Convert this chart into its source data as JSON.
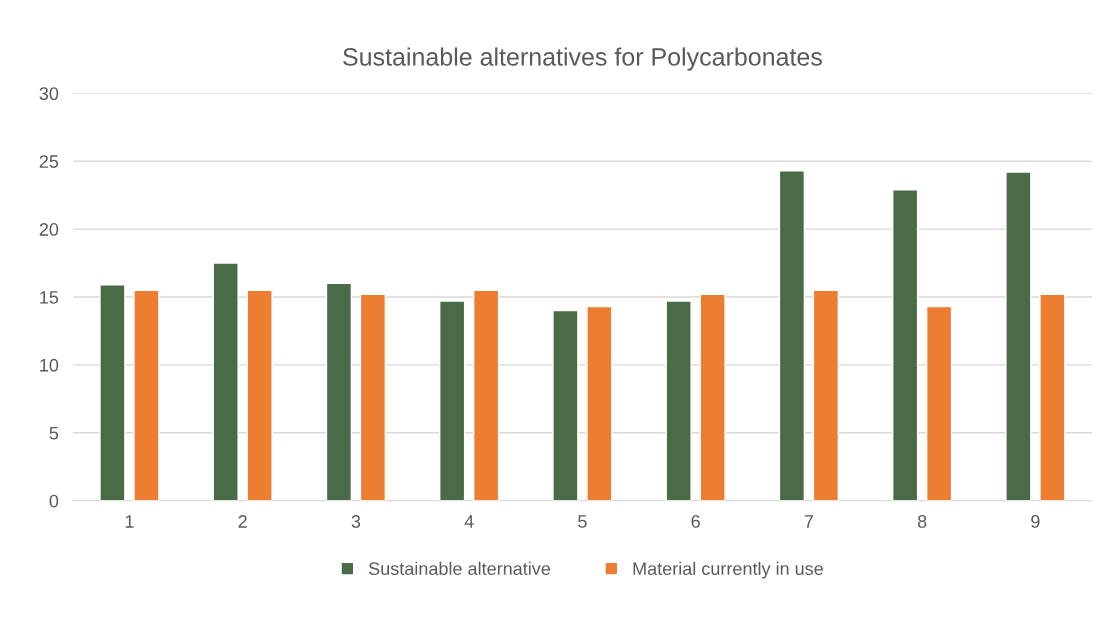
{
  "chart_data": {
    "type": "bar",
    "title": "Sustainable alternatives for Polycarbonates",
    "categories": [
      "1",
      "2",
      "3",
      "4",
      "5",
      "6",
      "7",
      "8",
      "9"
    ],
    "series": [
      {
        "name": "Sustainable alternative",
        "color": "#4a6b47",
        "values": [
          15.9,
          17.5,
          16.0,
          14.7,
          14.0,
          14.7,
          24.3,
          22.9,
          24.2
        ]
      },
      {
        "name": "Material currently in use",
        "color": "#ed7d31",
        "values": [
          15.5,
          15.5,
          15.2,
          15.5,
          14.3,
          15.2,
          15.5,
          14.3,
          15.2
        ]
      }
    ],
    "ylim": [
      0,
      30
    ],
    "yticks": [
      0,
      5,
      10,
      15,
      20,
      25,
      30
    ],
    "grid": "y",
    "legend": "bottom"
  }
}
